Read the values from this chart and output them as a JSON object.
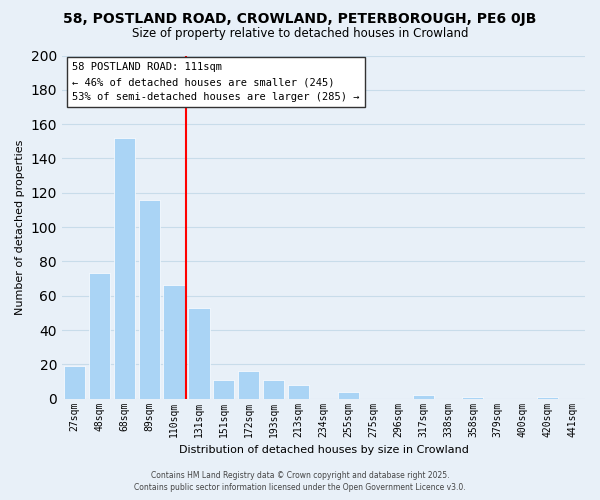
{
  "title": "58, POSTLAND ROAD, CROWLAND, PETERBOROUGH, PE6 0JB",
  "subtitle": "Size of property relative to detached houses in Crowland",
  "xlabel": "Distribution of detached houses by size in Crowland",
  "ylabel": "Number of detached properties",
  "bin_labels": [
    "27sqm",
    "48sqm",
    "68sqm",
    "89sqm",
    "110sqm",
    "131sqm",
    "151sqm",
    "172sqm",
    "193sqm",
    "213sqm",
    "234sqm",
    "255sqm",
    "275sqm",
    "296sqm",
    "317sqm",
    "338sqm",
    "358sqm",
    "379sqm",
    "400sqm",
    "420sqm",
    "441sqm"
  ],
  "bar_values": [
    19,
    73,
    152,
    116,
    66,
    53,
    11,
    16,
    11,
    8,
    0,
    4,
    0,
    0,
    2,
    0,
    1,
    0,
    0,
    1,
    0
  ],
  "bar_color": "#aad4f5",
  "vline_x": 4.5,
  "vline_color": "red",
  "ylim": [
    0,
    200
  ],
  "yticks": [
    0,
    20,
    40,
    60,
    80,
    100,
    120,
    140,
    160,
    180,
    200
  ],
  "annotation_title": "58 POSTLAND ROAD: 111sqm",
  "annotation_line1": "← 46% of detached houses are smaller (245)",
  "annotation_line2": "53% of semi-detached houses are larger (285) →",
  "annotation_box_color": "white",
  "annotation_box_edge": "#333333",
  "grid_color": "#c8dcea",
  "background_color": "#e8f0f8",
  "footer1": "Contains HM Land Registry data © Crown copyright and database right 2025.",
  "footer2": "Contains public sector information licensed under the Open Government Licence v3.0."
}
